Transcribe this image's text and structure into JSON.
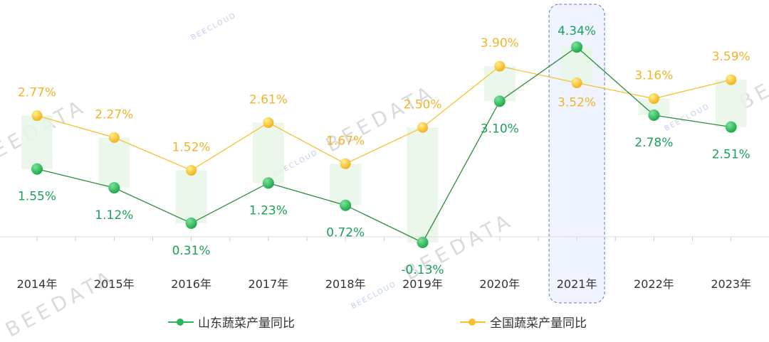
{
  "chart_data": {
    "type": "line",
    "title": "",
    "xlabel": "",
    "ylabel": "",
    "categories": [
      "2014年",
      "2015年",
      "2016年",
      "2017年",
      "2018年",
      "2019年",
      "2020年",
      "2021年",
      "2022年",
      "2023年"
    ],
    "series": [
      {
        "name": "山东蔬菜产量同比",
        "color": "#2db55d",
        "label_color": "#19a05a",
        "values": [
          1.55,
          1.12,
          0.31,
          1.23,
          0.72,
          -0.13,
          3.1,
          4.34,
          2.78,
          2.51
        ],
        "labels": [
          "1.55%",
          "1.12%",
          "0.31%",
          "1.23%",
          "0.72%",
          "-0.13%",
          "3.10%",
          "4.34%",
          "2.78%",
          "2.51%"
        ]
      },
      {
        "name": "全国蔬菜产量同比",
        "color": "#f5c12e",
        "label_color": "#f0b429",
        "values": [
          2.77,
          2.27,
          1.52,
          2.61,
          1.67,
          2.5,
          3.9,
          3.52,
          3.16,
          3.59
        ],
        "labels": [
          "2.77%",
          "2.27%",
          "1.52%",
          "2.61%",
          "1.67%",
          "2.50%",
          "3.90%",
          "3.52%",
          "3.16%",
          "3.59%"
        ]
      }
    ],
    "highlight_category": "2021年",
    "grid": false,
    "legend_position": "bottom",
    "ylim": [
      -0.5,
      4.6
    ]
  },
  "legend": {
    "items": [
      {
        "label": "山东蔬菜产量同比",
        "color": "#2db55d"
      },
      {
        "label": "全国蔬菜产量同比",
        "color": "#f5c12e"
      }
    ]
  },
  "watermark": {
    "text": "BEEDATA",
    "brand": "BEECLOUD"
  }
}
